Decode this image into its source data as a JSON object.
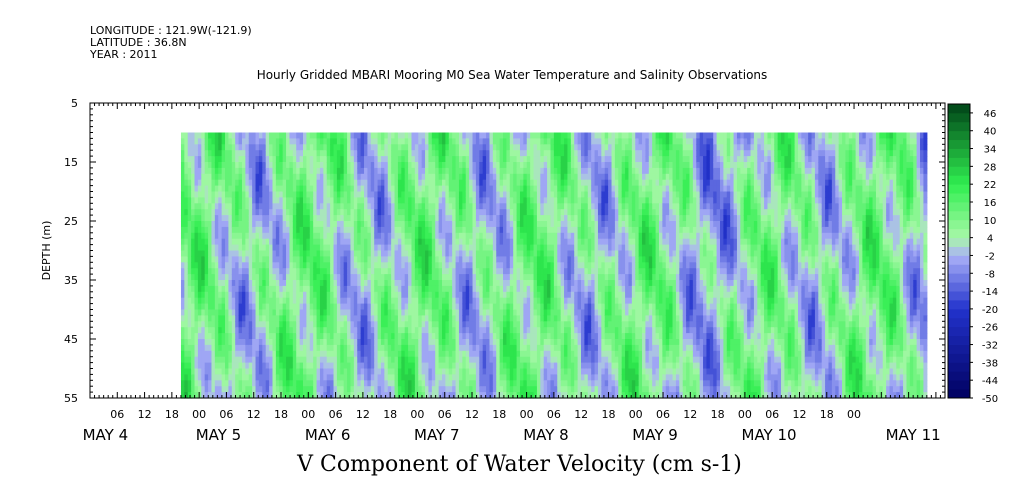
{
  "header": {
    "longitude": "LONGITUDE : 121.9W(-121.9)",
    "latitude": "LATITUDE : 36.8N",
    "year": "YEAR : 2011"
  },
  "chart_data": {
    "type": "heatmap",
    "title": "Hourly Gridded MBARI Mooring M0 Sea Water Temperature and Salinity Observations",
    "caption": "V Component of Water Velocity (cm s-1)",
    "ylabel": "DEPTH (m)",
    "y_axis": {
      "range": [
        5,
        55
      ],
      "inverted": true,
      "ticks": [
        5,
        15,
        25,
        35,
        45,
        55
      ],
      "data_top_depth": 10
    },
    "x_axis": {
      "hour_tick_labels": [
        "06",
        "12",
        "18",
        "00",
        "06",
        "12",
        "18",
        "00",
        "06",
        "12",
        "18",
        "00",
        "06",
        "12",
        "18",
        "00",
        "06",
        "12",
        "18",
        "00",
        "06",
        "12",
        "18",
        "00",
        "06",
        "12",
        "18",
        "00"
      ],
      "day_labels": [
        "MAY  4",
        "MAY  5",
        "MAY  6",
        "MAY  7",
        "MAY  8",
        "MAY  9",
        "MAY 10",
        "MAY 11"
      ],
      "start": "MAY 3 12:00",
      "data_start": "MAY 4 08:00",
      "data_end": "MAY 11 04:00"
    },
    "colorbar": {
      "labels": [
        "46",
        "40",
        "34",
        "28",
        "22",
        "16",
        "10",
        "4",
        "-2",
        "-8",
        "-14",
        "-20",
        "-26",
        "-32",
        "-38",
        "-44",
        "-50"
      ],
      "levels": [
        -50,
        -47,
        -44,
        -41,
        -38,
        -35,
        -32,
        -29,
        -26,
        -23,
        -20,
        -17,
        -14,
        -11,
        -8,
        -5,
        -2,
        1,
        4,
        7,
        10,
        13,
        16,
        19,
        22,
        25,
        28,
        31,
        34,
        37,
        40,
        43,
        46,
        49
      ],
      "colors": {
        "dark_blue": "#000060",
        "blue": "#2233cc",
        "light_blue": "#aab0f8",
        "light_green": "#a8f8a8",
        "green": "#30ee50",
        "dark_green": "#004418"
      }
    }
  }
}
